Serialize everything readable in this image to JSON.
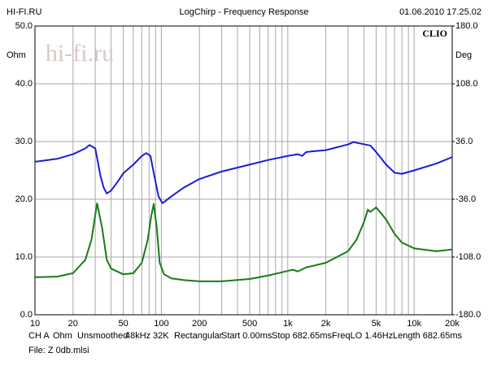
{
  "chart_data": {
    "type": "line",
    "source": "HI-FI.RU",
    "title": "LogChirp - Frequency Response",
    "timestamp": "01.06.2010 17.25.02",
    "brand": "CLIO",
    "watermark": "hi-fi.ru",
    "ylabel": "Ohm",
    "y2label": "Deg",
    "xscale": "log",
    "grid": true,
    "xlim": [
      10,
      20000
    ],
    "xticks": [
      10,
      20,
      50,
      100,
      200,
      500,
      {
        "value": 1000,
        "label": "1k"
      },
      {
        "value": 2000,
        "label": "2k"
      },
      {
        "value": 5000,
        "label": "5k"
      },
      {
        "value": 10000,
        "label": "10k"
      },
      {
        "value": 20000,
        "label": "20k"
      }
    ],
    "x_minor_grid": [
      30,
      40,
      60,
      70,
      80,
      90,
      300,
      400,
      600,
      700,
      800,
      900,
      3000,
      4000,
      6000,
      7000,
      8000,
      9000
    ],
    "ylim": [
      0,
      50
    ],
    "yticks": [
      {
        "value": 0,
        "label": "0.0"
      },
      {
        "value": 10,
        "label": "10.0"
      },
      {
        "value": 20,
        "label": "20.0"
      },
      {
        "value": 30,
        "label": "30.0"
      },
      {
        "value": 40,
        "label": "40.0"
      },
      {
        "value": 50,
        "label": "50.0"
      }
    ],
    "y2lim": [
      -180,
      180
    ],
    "y2ticks": [
      {
        "value": -180,
        "label": "-180.0"
      },
      {
        "value": -108,
        "label": "-108.0"
      },
      {
        "value": -36,
        "label": "-36.0"
      },
      {
        "value": 36,
        "label": "36.0"
      },
      {
        "value": 108,
        "label": "108.0"
      },
      {
        "value": 180,
        "label": "180.0"
      }
    ],
    "series": [
      {
        "color": "#1c1cd8",
        "axis": "y2",
        "x": [
          10,
          15,
          20,
          25,
          27,
          30,
          33,
          35,
          37,
          40,
          45,
          50,
          60,
          70,
          76,
          82,
          88,
          95,
          102,
          120,
          150,
          200,
          300,
          500,
          700,
          1000,
          1200,
          1300,
          1400,
          2000,
          3000,
          3300,
          4500,
          5000,
          6000,
          7000,
          8000,
          10000,
          15000,
          20000
        ],
        "values": [
          10.8,
          14.4,
          20.2,
          27.4,
          31.7,
          27.4,
          -7.2,
          -21.6,
          -28.8,
          -25.2,
          -14.4,
          -3.6,
          7.2,
          18,
          21.6,
          18,
          -7.2,
          -32.4,
          -41,
          -32.4,
          -21.6,
          -10.8,
          -1.4,
          7.2,
          13,
          18,
          20.2,
          18,
          23,
          25.2,
          32.4,
          35.3,
          31,
          23,
          7.2,
          -2.9,
          -4.3,
          0,
          8.6,
          16.6
        ]
      },
      {
        "color": "#1a7a1a",
        "x": [
          10,
          15,
          20,
          25,
          28,
          31,
          34,
          37,
          40,
          50,
          60,
          70,
          78,
          83,
          87,
          92,
          97,
          105,
          120,
          150,
          200,
          300,
          500,
          700,
          1000,
          1100,
          1200,
          1400,
          2000,
          3000,
          3500,
          4000,
          4300,
          4500,
          5000,
          6000,
          7000,
          8000,
          10000,
          15000,
          20000
        ],
        "values": [
          6.5,
          6.6,
          7.2,
          9.5,
          13,
          19.3,
          15,
          9.5,
          8,
          7,
          7.2,
          9,
          13,
          17,
          19.2,
          15,
          9,
          7,
          6.3,
          6,
          5.8,
          5.8,
          6.2,
          6.8,
          7.6,
          7.8,
          7.5,
          8.2,
          9,
          11,
          13,
          16,
          18.2,
          17.8,
          18.6,
          16.5,
          14,
          12.5,
          11.5,
          11,
          11.3
        ]
      }
    ],
    "status_items": [
      "CH A",
      "Ohm",
      "Unsmoothed",
      "48kHz",
      "32K",
      "Rectangular",
      "Start 0.00ms",
      "Stop 682.65ms",
      "FreqLO 1.46Hz",
      "Length 682.65ms"
    ],
    "file_label": "File: Z 0db.mlsi"
  }
}
